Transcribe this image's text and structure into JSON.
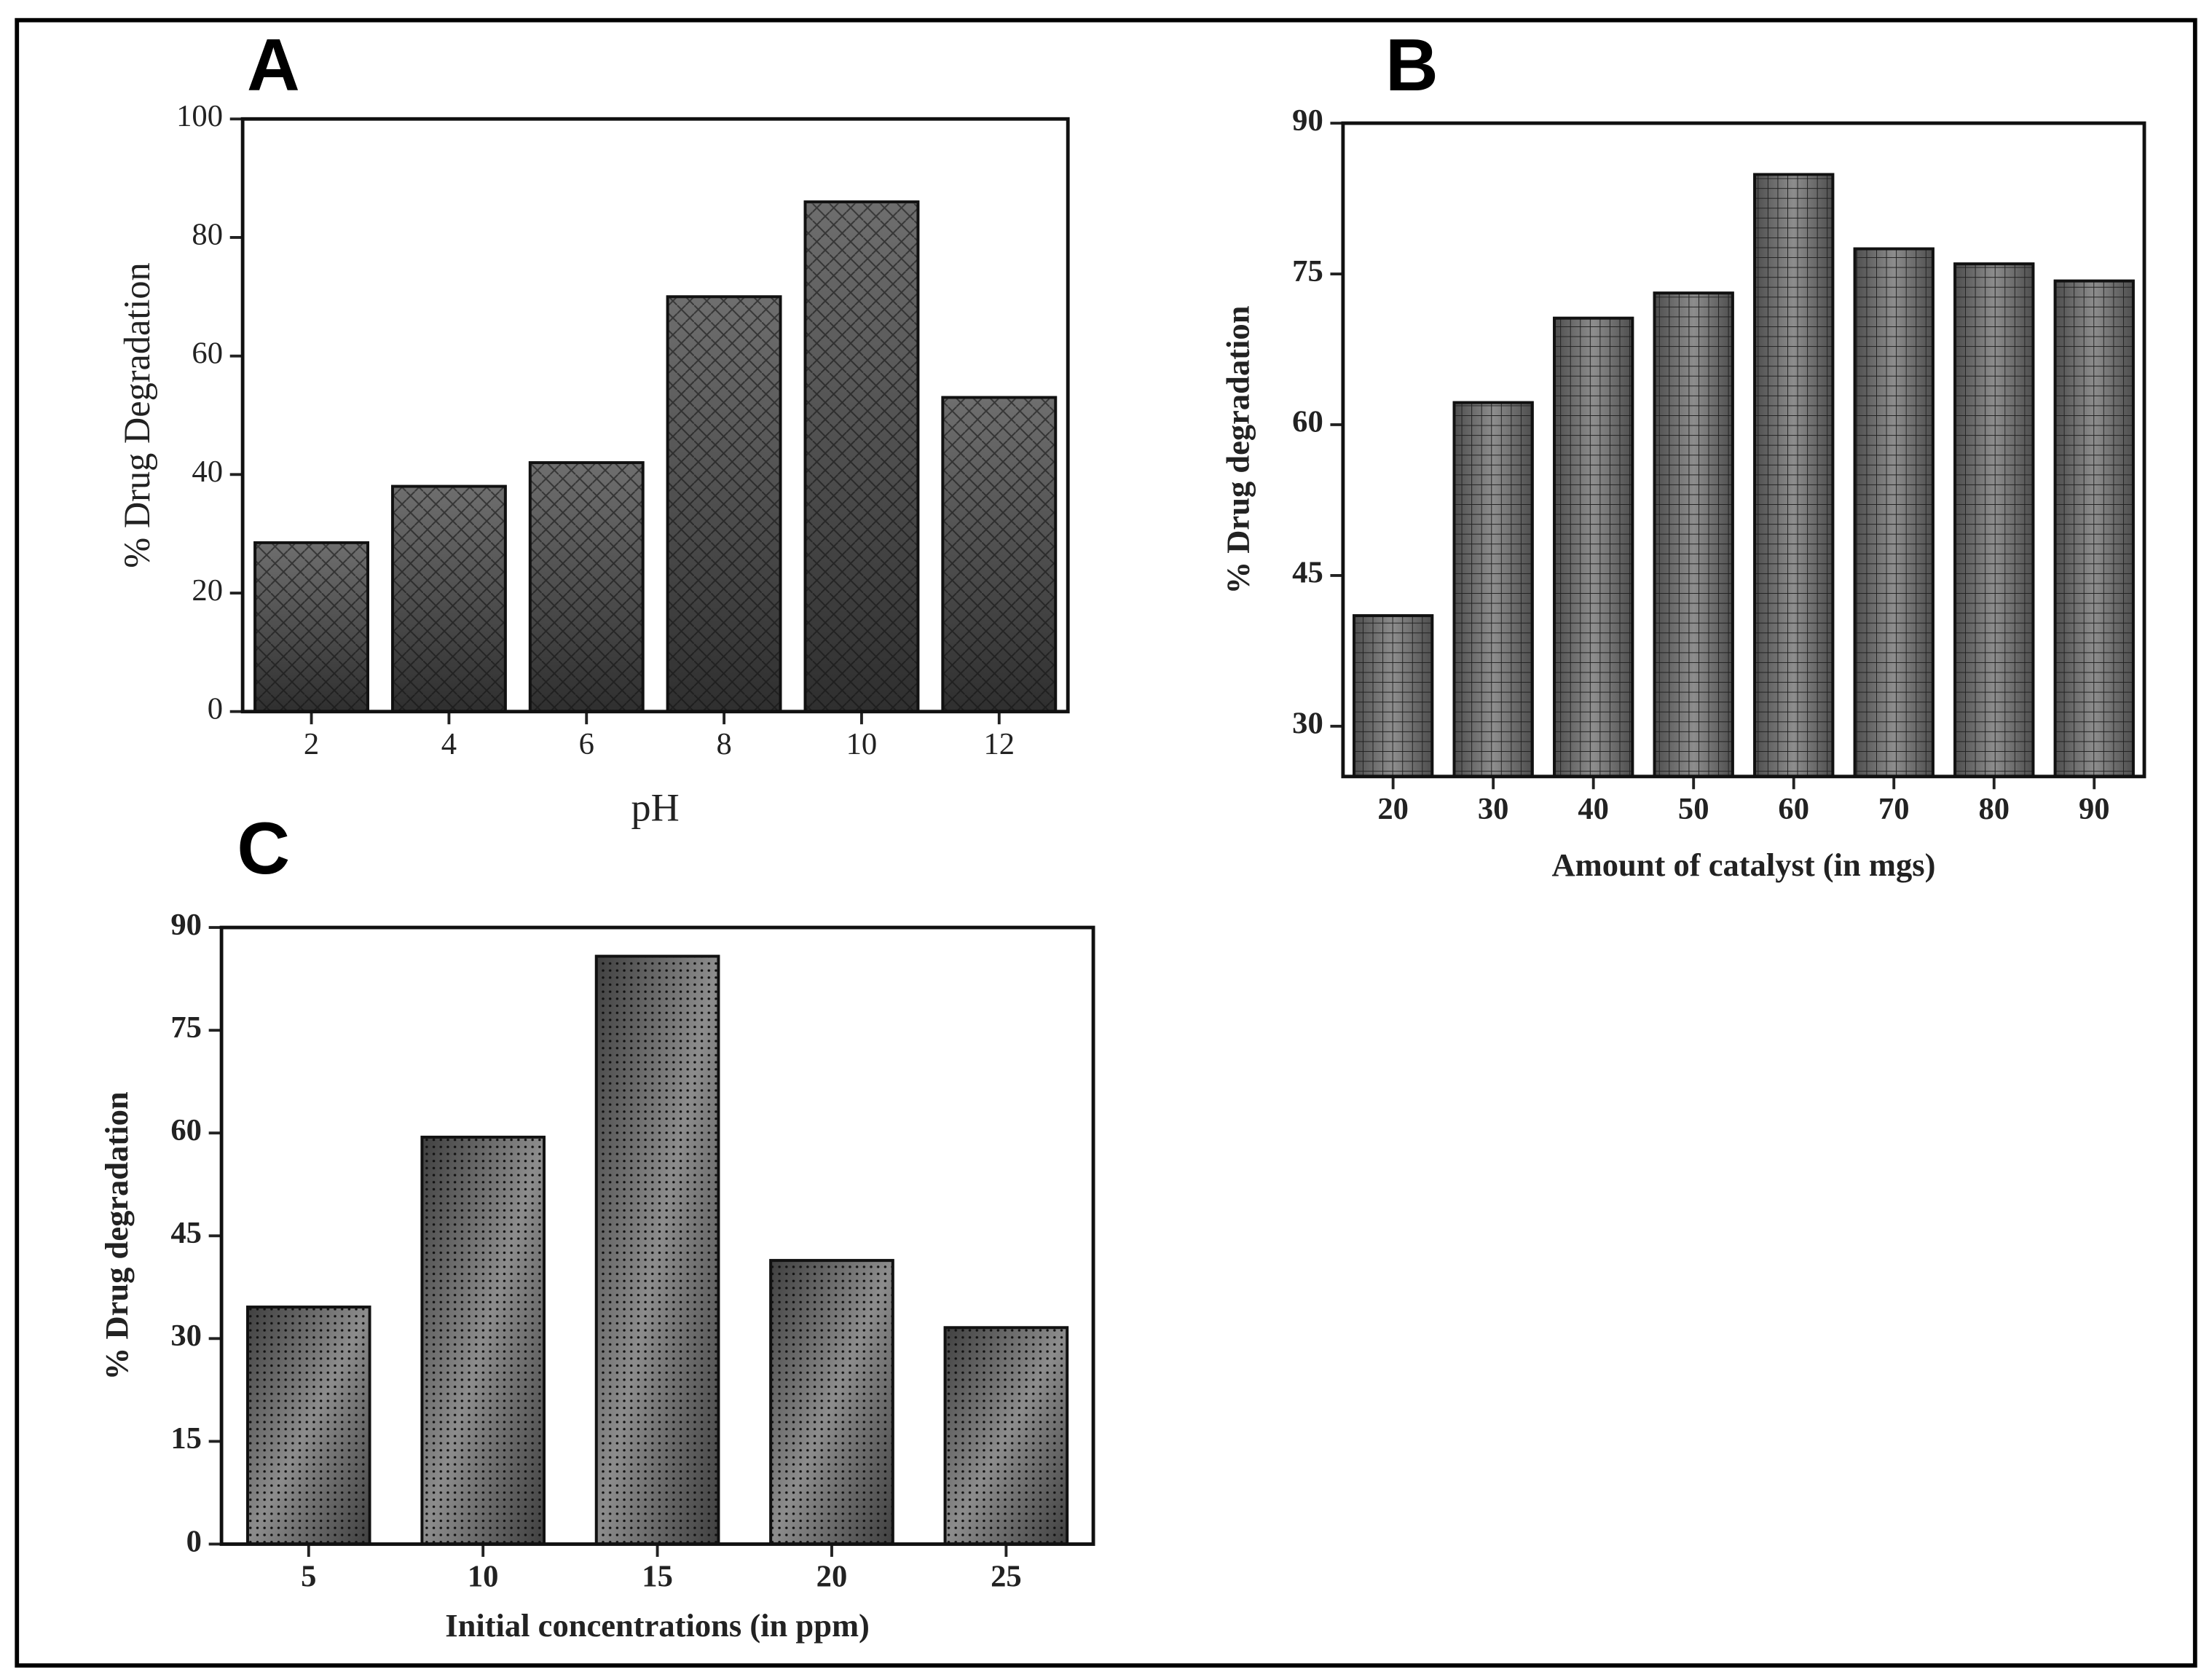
{
  "chart_data": [
    {
      "type": "bar",
      "panel": "A",
      "x_label": "pH",
      "y_label": "% Drug Degradation",
      "categories": [
        2,
        4,
        6,
        8,
        10,
        12
      ],
      "values": [
        28.5,
        38,
        42,
        70,
        86,
        53
      ],
      "ylim": [
        0,
        100
      ],
      "yticks": [
        0,
        20,
        40,
        60,
        80,
        100
      ],
      "color": "#555555"
    },
    {
      "type": "bar",
      "panel": "B",
      "x_label": "Amount of catalyst (in mgs)",
      "y_label": "% Drug degradation",
      "categories": [
        20,
        30,
        40,
        50,
        60,
        70,
        80,
        90
      ],
      "values": [
        41,
        62.2,
        70.6,
        73.1,
        84.9,
        77.5,
        76,
        74.3
      ],
      "ylim": [
        25,
        90
      ],
      "yticks": [
        30,
        45,
        60,
        75,
        90
      ],
      "color": "#6a6a6a"
    },
    {
      "type": "bar",
      "panel": "C",
      "x_label": "Initial concentrations (in ppm)",
      "y_label": "% Drug degradation",
      "categories": [
        5,
        10,
        15,
        20,
        25
      ],
      "values": [
        34.6,
        59.4,
        85.8,
        41.4,
        31.6
      ],
      "ylim": [
        0,
        90
      ],
      "yticks": [
        0,
        15,
        30,
        45,
        60,
        75,
        90
      ],
      "color": "#666666"
    }
  ]
}
